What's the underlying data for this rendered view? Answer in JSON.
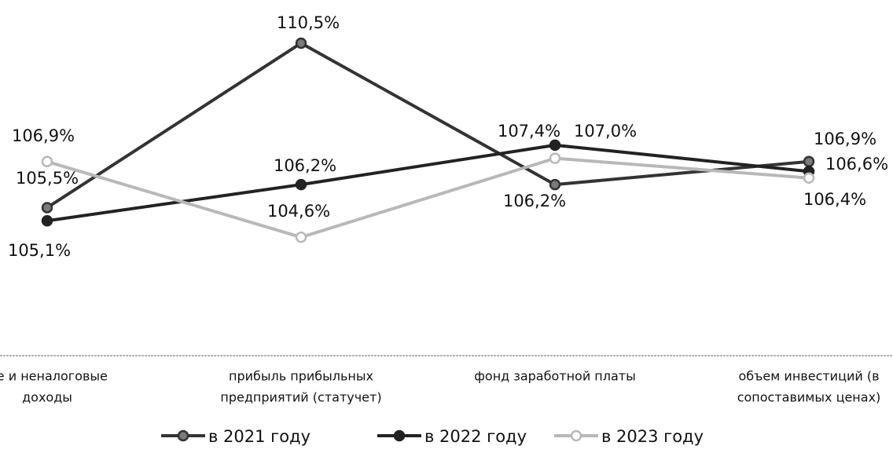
{
  "chart_data": {
    "type": "line",
    "categories": [
      [
        "ые и неналоговые",
        "доходы"
      ],
      [
        "прибыль прибыльных",
        "предприятий (статучет)"
      ],
      [
        "фонд заработной платы"
      ],
      [
        "объем инвестиций (в",
        "сопоставимых ценах)"
      ]
    ],
    "series": [
      {
        "name": "в 2021 году",
        "color": "#333333",
        "marker": "#7a7a7a",
        "values": [
          105.5,
          110.5,
          106.2,
          106.9
        ],
        "value_labels": [
          "105,5%",
          "110,5%",
          "106,2%",
          "106,9%"
        ]
      },
      {
        "name": "в 2022 году",
        "color": "#222222",
        "marker": "#222222",
        "values": [
          105.1,
          106.2,
          107.4,
          106.6
        ],
        "value_labels": [
          "105,1%",
          "106,2%",
          "107,4%",
          "106,6%"
        ]
      },
      {
        "name": "в 2023 году",
        "color": "#b8b8b8",
        "marker": "#ffffff",
        "values": [
          106.9,
          104.6,
          107.0,
          106.4
        ],
        "value_labels": [
          "106,9%",
          "104,6%",
          "107,0%",
          "106,4%"
        ]
      }
    ],
    "ylim": [
      101,
      111
    ]
  }
}
